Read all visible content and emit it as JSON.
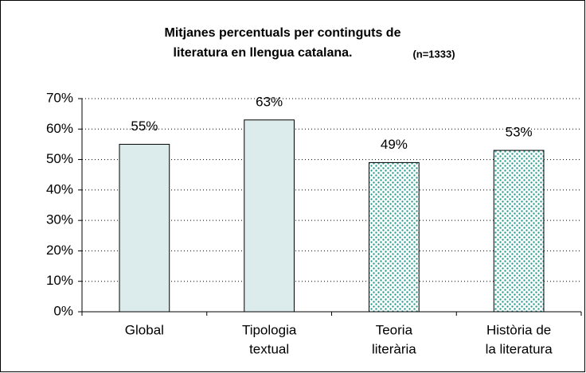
{
  "chart_data": {
    "type": "bar",
    "title": [
      "Mitjanes percentuals per continguts de",
      "literatura en llengua catalana."
    ],
    "subtitle": "(n=1333)",
    "categories": [
      [
        "Global"
      ],
      [
        "Tipologia",
        "textual"
      ],
      [
        "Teoria",
        "literària"
      ],
      [
        "Història de",
        "la literatura"
      ]
    ],
    "values": [
      55,
      63,
      49,
      53
    ],
    "value_labels": [
      "55%",
      "63%",
      "49%",
      "53%"
    ],
    "color": "#dcecec",
    "pattern_color": "#2a9d8f",
    "patterned": [
      false,
      false,
      true,
      true
    ],
    "ylim": [
      0,
      70
    ],
    "yticks": [
      {
        "value": 0,
        "label": "0%"
      },
      {
        "value": 10,
        "label": "10%"
      },
      {
        "value": 20,
        "label": "20%"
      },
      {
        "value": 30,
        "label": "30%"
      },
      {
        "value": 40,
        "label": "40%"
      },
      {
        "value": 50,
        "label": "50%"
      },
      {
        "value": 60,
        "label": "60%"
      },
      {
        "value": 70,
        "label": "70%"
      }
    ],
    "grid": true
  }
}
